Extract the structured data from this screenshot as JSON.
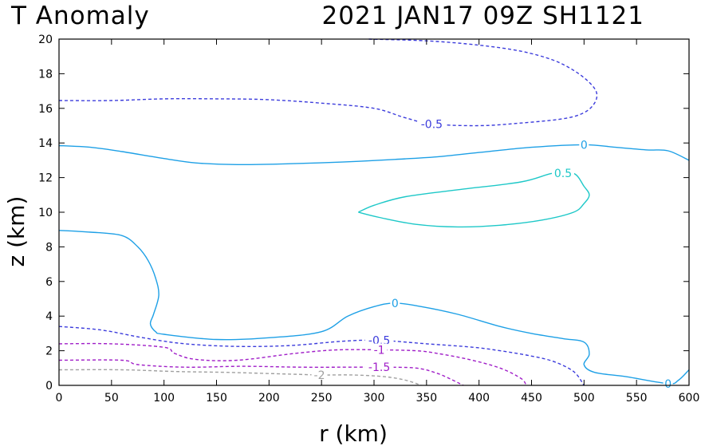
{
  "chart_data": {
    "type": "contour",
    "title_left": "T Anomaly",
    "title_right": "2021 JAN17 09Z   SH1121",
    "xlabel": "r (km)",
    "ylabel": "z (km)",
    "xlim": [
      0,
      600
    ],
    "ylim": [
      0,
      20
    ],
    "xticks": [
      0,
      50,
      100,
      150,
      200,
      250,
      300,
      350,
      400,
      450,
      500,
      550,
      600
    ],
    "yticks": [
      0,
      2,
      4,
      6,
      8,
      10,
      12,
      14,
      16,
      18,
      20
    ],
    "colors": {
      "neg_0_5": "#3c3cdc",
      "zero": "#1ea0e6",
      "pos_0_5": "#1ec8c8",
      "neg_1": "#a01ec8",
      "neg_1_5": "#a01ec8",
      "neg_2": "#a0a0a0"
    },
    "contours": [
      {
        "id": "neg-0-5-upper",
        "level": "-0.5",
        "color_key": "neg_0_5",
        "dashed": true,
        "label_at": [
          355,
          15.1
        ],
        "points": [
          [
            0,
            16.45
          ],
          [
            50,
            16.45
          ],
          [
            100,
            16.55
          ],
          [
            150,
            16.55
          ],
          [
            200,
            16.5
          ],
          [
            250,
            16.3
          ],
          [
            300,
            16.0
          ],
          [
            330,
            15.45
          ],
          [
            355,
            15.1
          ],
          [
            400,
            15.0
          ],
          [
            440,
            15.15
          ],
          [
            480,
            15.4
          ],
          [
            500,
            15.75
          ],
          [
            510,
            16.3
          ],
          [
            512,
            16.9
          ],
          [
            505,
            17.5
          ],
          [
            490,
            18.2
          ],
          [
            470,
            18.8
          ],
          [
            440,
            19.3
          ],
          [
            400,
            19.65
          ],
          [
            350,
            19.9
          ],
          [
            295,
            20.0
          ]
        ]
      },
      {
        "id": "zero-upper",
        "level": "0",
        "color_key": "zero",
        "dashed": false,
        "label_at": [
          500,
          13.9
        ],
        "points": [
          [
            0,
            13.85
          ],
          [
            30,
            13.75
          ],
          [
            60,
            13.5
          ],
          [
            100,
            13.1
          ],
          [
            130,
            12.85
          ],
          [
            170,
            12.75
          ],
          [
            220,
            12.8
          ],
          [
            270,
            12.9
          ],
          [
            320,
            13.05
          ],
          [
            360,
            13.2
          ],
          [
            400,
            13.45
          ],
          [
            450,
            13.75
          ],
          [
            500,
            13.9
          ],
          [
            530,
            13.75
          ],
          [
            560,
            13.6
          ],
          [
            580,
            13.55
          ],
          [
            600,
            13.0
          ]
        ]
      },
      {
        "id": "pos-0-5",
        "level": "0.5",
        "color_key": "pos_0_5",
        "dashed": false,
        "label_at": [
          480,
          12.25
        ],
        "points": [
          [
            285,
            10.0
          ],
          [
            300,
            10.4
          ],
          [
            330,
            10.9
          ],
          [
            380,
            11.3
          ],
          [
            440,
            11.75
          ],
          [
            470,
            12.25
          ],
          [
            490,
            12.25
          ],
          [
            500,
            11.5
          ],
          [
            505,
            11.0
          ],
          [
            500,
            10.5
          ],
          [
            490,
            10.0
          ],
          [
            460,
            9.55
          ],
          [
            420,
            9.25
          ],
          [
            380,
            9.15
          ],
          [
            340,
            9.3
          ],
          [
            305,
            9.7
          ],
          [
            285,
            10.0
          ]
        ]
      },
      {
        "id": "zero-lower",
        "level": "0",
        "color_key": "zero",
        "dashed": false,
        "label_at": [
          320,
          4.75
        ],
        "label2_at": [
          580,
          0.1
        ],
        "points": [
          [
            0,
            8.95
          ],
          [
            30,
            8.85
          ],
          [
            60,
            8.65
          ],
          [
            75,
            8.0
          ],
          [
            85,
            7.2
          ],
          [
            92,
            6.2
          ],
          [
            95,
            5.2
          ],
          [
            90,
            4.1
          ],
          [
            87,
            3.55
          ],
          [
            92,
            3.1
          ],
          [
            100,
            2.95
          ],
          [
            150,
            2.65
          ],
          [
            200,
            2.75
          ],
          [
            250,
            3.1
          ],
          [
            275,
            4.0
          ],
          [
            300,
            4.55
          ],
          [
            320,
            4.75
          ],
          [
            345,
            4.55
          ],
          [
            380,
            4.1
          ],
          [
            420,
            3.4
          ],
          [
            450,
            3.0
          ],
          [
            480,
            2.7
          ],
          [
            500,
            2.5
          ],
          [
            505,
            1.8
          ],
          [
            500,
            1.2
          ],
          [
            510,
            0.75
          ],
          [
            540,
            0.5
          ],
          [
            580,
            0.1
          ],
          [
            590,
            0.3
          ],
          [
            600,
            0.9
          ]
        ]
      },
      {
        "id": "neg-0-5-lower",
        "level": "-0.5",
        "color_key": "neg_0_5",
        "dashed": true,
        "label_at": [
          305,
          2.6
        ],
        "points": [
          [
            0,
            3.4
          ],
          [
            40,
            3.2
          ],
          [
            80,
            2.75
          ],
          [
            120,
            2.4
          ],
          [
            170,
            2.25
          ],
          [
            220,
            2.3
          ],
          [
            270,
            2.55
          ],
          [
            305,
            2.6
          ],
          [
            350,
            2.4
          ],
          [
            395,
            2.2
          ],
          [
            420,
            2.0
          ],
          [
            445,
            1.75
          ],
          [
            470,
            1.4
          ],
          [
            490,
            0.8
          ],
          [
            500,
            0.0
          ]
        ]
      },
      {
        "id": "neg-1",
        "level": "-1",
        "color_key": "neg_1",
        "dashed": true,
        "label_at": [
          305,
          2.05
        ],
        "points": [
          [
            0,
            2.4
          ],
          [
            50,
            2.4
          ],
          [
            100,
            2.2
          ],
          [
            110,
            1.85
          ],
          [
            130,
            1.5
          ],
          [
            170,
            1.45
          ],
          [
            225,
            1.85
          ],
          [
            265,
            2.05
          ],
          [
            305,
            2.05
          ],
          [
            340,
            2.0
          ],
          [
            360,
            1.85
          ],
          [
            390,
            1.5
          ],
          [
            420,
            1.0
          ],
          [
            440,
            0.4
          ],
          [
            445,
            0.0
          ]
        ]
      },
      {
        "id": "neg-1-5",
        "level": "-1.5",
        "color_key": "neg_1_5",
        "dashed": true,
        "label_at": [
          305,
          1.05
        ],
        "points": [
          [
            0,
            1.45
          ],
          [
            60,
            1.45
          ],
          [
            75,
            1.2
          ],
          [
            120,
            1.05
          ],
          [
            175,
            1.1
          ],
          [
            230,
            1.05
          ],
          [
            275,
            1.05
          ],
          [
            305,
            1.05
          ],
          [
            340,
            1.0
          ],
          [
            360,
            0.7
          ],
          [
            375,
            0.3
          ],
          [
            385,
            0.0
          ]
        ]
      },
      {
        "id": "neg-2",
        "level": "-2",
        "color_key": "neg_2",
        "dashed": true,
        "label_at": [
          248,
          0.6
        ],
        "points": [
          [
            0,
            0.9
          ],
          [
            60,
            0.9
          ],
          [
            110,
            0.8
          ],
          [
            160,
            0.75
          ],
          [
            220,
            0.65
          ],
          [
            248,
            0.6
          ],
          [
            280,
            0.6
          ],
          [
            310,
            0.5
          ],
          [
            330,
            0.3
          ],
          [
            345,
            0.0
          ]
        ]
      }
    ]
  }
}
